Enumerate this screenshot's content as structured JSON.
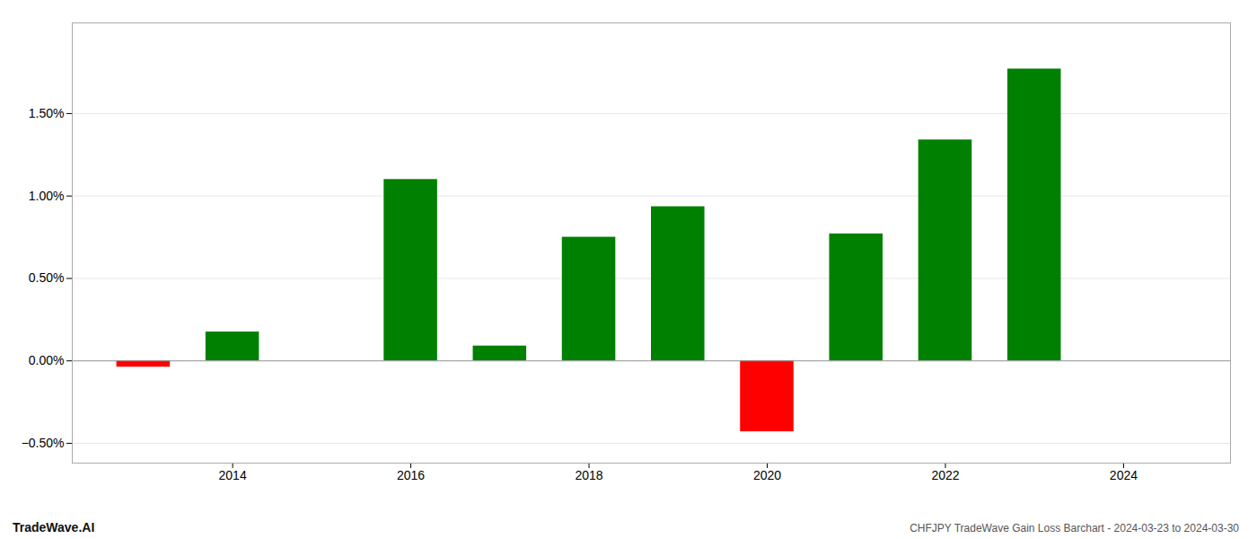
{
  "chart_data": {
    "type": "bar",
    "title": "CHFJPY TradeWave Gain Loss Barchart - 2024-03-23 to 2024-03-30",
    "annotations": [
      "TradeWave.AI"
    ],
    "x": [
      2013,
      2014,
      2016,
      2017,
      2018,
      2019,
      2020,
      2021,
      2022,
      2023
    ],
    "values": [
      -0.038,
      0.175,
      1.1,
      0.09,
      0.75,
      0.935,
      -0.43,
      0.77,
      1.34,
      1.77
    ],
    "colors": [
      "#ff0000",
      "#008000",
      "#008000",
      "#008000",
      "#008000",
      "#008000",
      "#ff0000",
      "#008000",
      "#008000",
      "#008000"
    ],
    "xlim": [
      2012.2,
      2025.2
    ],
    "xticks": [
      2014,
      2016,
      2018,
      2020,
      2022,
      2024
    ],
    "ylim": [
      -0.62,
      2.05
    ],
    "yticks": [
      {
        "value": -0.5,
        "label": "−0.50%"
      },
      {
        "value": 0.0,
        "label": "0.00%"
      },
      {
        "value": 0.5,
        "label": "0.50%"
      },
      {
        "value": 1.0,
        "label": "1.00%"
      },
      {
        "value": 1.5,
        "label": "1.50%"
      }
    ],
    "grid": true
  }
}
